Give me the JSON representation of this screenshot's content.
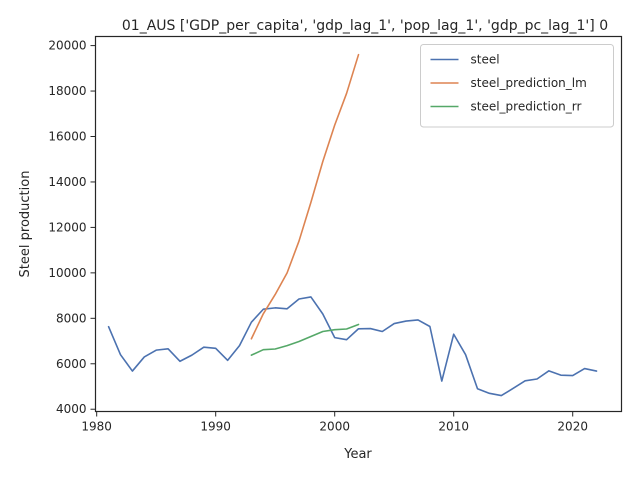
{
  "chart_data": {
    "type": "line",
    "title": "01_AUS ['GDP_per_capita', 'gdp_lag_1', 'pop_lag_1', 'gdp_pc_lag_1'] 0",
    "xlabel": "Year",
    "ylabel": "Steel production",
    "xlim": [
      1979.9,
      2024.1
    ],
    "ylim": [
      3900,
      20400
    ],
    "xticks": [
      1980,
      1990,
      2000,
      2010,
      2020
    ],
    "yticks": [
      4000,
      6000,
      8000,
      10000,
      12000,
      14000,
      16000,
      18000,
      20000
    ],
    "grid": false,
    "legend_position": "top-right",
    "series": [
      {
        "name": "steel",
        "color": "#4c72b0",
        "x": [
          1981,
          1982,
          1983,
          1984,
          1985,
          1986,
          1987,
          1988,
          1989,
          1990,
          1991,
          1992,
          1993,
          1994,
          1995,
          1996,
          1997,
          1998,
          1999,
          2000,
          2001,
          2002,
          2003,
          2004,
          2005,
          2006,
          2007,
          2008,
          2009,
          2010,
          2011,
          2012,
          2013,
          2014,
          2015,
          2016,
          2017,
          2018,
          2019,
          2020,
          2021,
          2022
        ],
        "y": [
          7630,
          6400,
          5680,
          6300,
          6600,
          6660,
          6110,
          6380,
          6730,
          6680,
          6150,
          6800,
          7830,
          8400,
          8460,
          8420,
          8850,
          8940,
          8190,
          7150,
          7060,
          7540,
          7550,
          7420,
          7770,
          7880,
          7930,
          7640,
          5240,
          7300,
          6400,
          4900,
          4700,
          4600,
          4920,
          5250,
          5330,
          5690,
          5500,
          5480,
          5790,
          5680
        ]
      },
      {
        "name": "steel_prediction_lm",
        "color": "#dd8452",
        "x": [
          1993,
          1994,
          1995,
          1996,
          1997,
          1998,
          1999,
          2000,
          2001,
          2002
        ],
        "y": [
          7100,
          8200,
          9050,
          10000,
          11400,
          13100,
          14900,
          16500,
          17900,
          19600
        ]
      },
      {
        "name": "steel_prediction_rr",
        "color": "#55a868",
        "x": [
          1993,
          1994,
          1995,
          1996,
          1997,
          1998,
          1999,
          2000,
          2001,
          2002
        ],
        "y": [
          6380,
          6620,
          6650,
          6800,
          6980,
          7200,
          7420,
          7500,
          7530,
          7730
        ]
      }
    ]
  }
}
